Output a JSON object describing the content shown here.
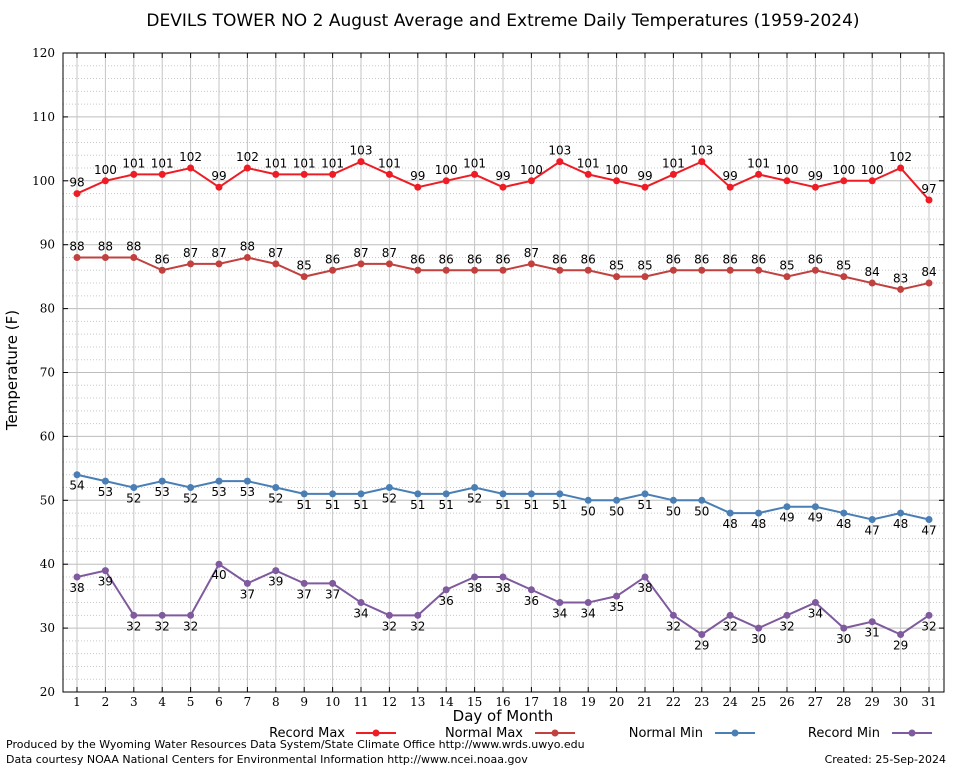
{
  "chart_data": {
    "type": "line",
    "title": "DEVILS TOWER NO 2 August Average and Extreme Daily Temperatures (1959-2024)",
    "xlabel": "Day of Month",
    "ylabel": "Temperature (F)",
    "ylim": [
      20,
      120
    ],
    "yticks": [
      20,
      30,
      40,
      50,
      60,
      70,
      80,
      90,
      100,
      110,
      120
    ],
    "grid": true,
    "legend_position": "bottom",
    "x": [
      1,
      2,
      3,
      4,
      5,
      6,
      7,
      8,
      9,
      10,
      11,
      12,
      13,
      14,
      15,
      16,
      17,
      18,
      19,
      20,
      21,
      22,
      23,
      24,
      25,
      26,
      27,
      28,
      29,
      30,
      31
    ],
    "series": [
      {
        "name": "Record Max",
        "color": "#ee1c24",
        "label_pos": "above",
        "values": [
          98,
          100,
          101,
          101,
          102,
          99,
          102,
          101,
          101,
          101,
          103,
          101,
          99,
          100,
          101,
          99,
          100,
          103,
          101,
          100,
          99,
          101,
          103,
          99,
          101,
          100,
          99,
          100,
          100,
          102,
          97
        ]
      },
      {
        "name": "Normal Max",
        "color": "#c1413f",
        "label_pos": "above",
        "values": [
          88,
          88,
          88,
          86,
          87,
          87,
          88,
          87,
          85,
          86,
          87,
          87,
          86,
          86,
          86,
          86,
          87,
          86,
          86,
          85,
          85,
          86,
          86,
          86,
          86,
          85,
          86,
          85,
          84,
          83,
          84
        ]
      },
      {
        "name": "Normal Min",
        "color": "#4a7fb5",
        "label_pos": "below",
        "values": [
          54,
          53,
          52,
          53,
          52,
          53,
          53,
          52,
          51,
          51,
          51,
          52,
          51,
          51,
          52,
          51,
          51,
          51,
          50,
          50,
          51,
          50,
          50,
          48,
          48,
          49,
          49,
          48,
          47,
          48,
          47
        ]
      },
      {
        "name": "Record Min",
        "color": "#7f5a9e",
        "label_pos": "below",
        "values": [
          38,
          39,
          32,
          32,
          32,
          40,
          37,
          39,
          37,
          37,
          34,
          32,
          32,
          36,
          38,
          38,
          36,
          34,
          34,
          35,
          38,
          32,
          29,
          32,
          30,
          32,
          34,
          30,
          31,
          29,
          32
        ]
      }
    ]
  },
  "footer": {
    "line1": "Produced by the Wyoming Water Resources Data System/State Climate Office http://www.wrds.uwyo.edu",
    "line2": "Data courtesy NOAA National Centers for Environmental Information http://www.ncei.noaa.gov",
    "created": "Created:  25-Sep-2024"
  }
}
